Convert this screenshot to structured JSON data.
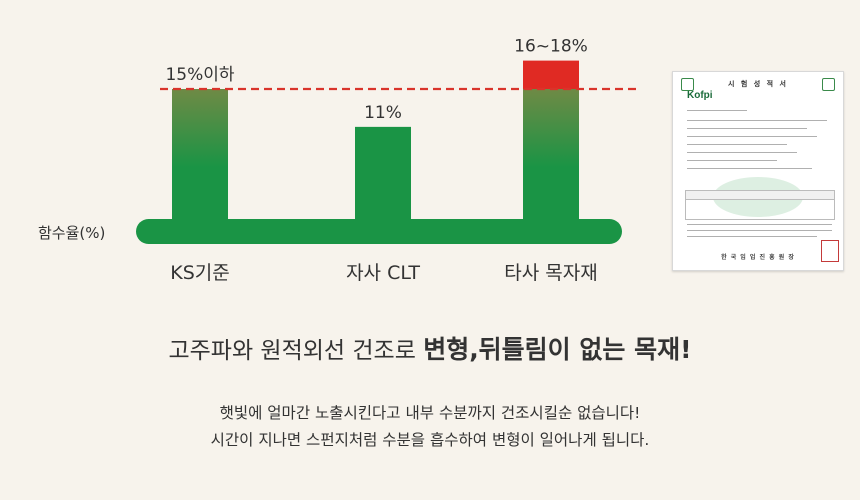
{
  "chart_data": {
    "type": "bar",
    "categories": [
      "KS기준",
      "자사 CLT",
      "타사 목자재"
    ],
    "values": [
      15,
      11,
      18
    ],
    "value_ranges": [
      null,
      null,
      [
        16,
        18
      ]
    ],
    "data_labels": [
      "15%이하",
      "11%",
      "16~18%"
    ],
    "ylabel": "함수율(%)",
    "reference_line": {
      "value": 15,
      "style": "dashed",
      "color": "#d9342b"
    },
    "colors": {
      "bar": "#1a9445",
      "bar_faded": "#6f8a45",
      "over_limit": "#e02a23",
      "baseline": "#1a9445"
    }
  },
  "certificate": {
    "title": "시 험 성 적 서",
    "logo": "Kofpi",
    "issuer": "한 국 임 업 진 흥 원 장",
    "seal": "한국임업진흥원장"
  },
  "headline": {
    "normal": "고주파와 원적외선 건조로 ",
    "emphasis": "변형,뒤틀림이 없는 목재!"
  },
  "description": [
    "햇빛에 얼마간 노출시킨다고 내부 수분까지 건조시킬순 없습니다!",
    "시간이 지나면 스펀지처럼 수분을 흡수하여 변형이 일어나게 됩니다."
  ]
}
